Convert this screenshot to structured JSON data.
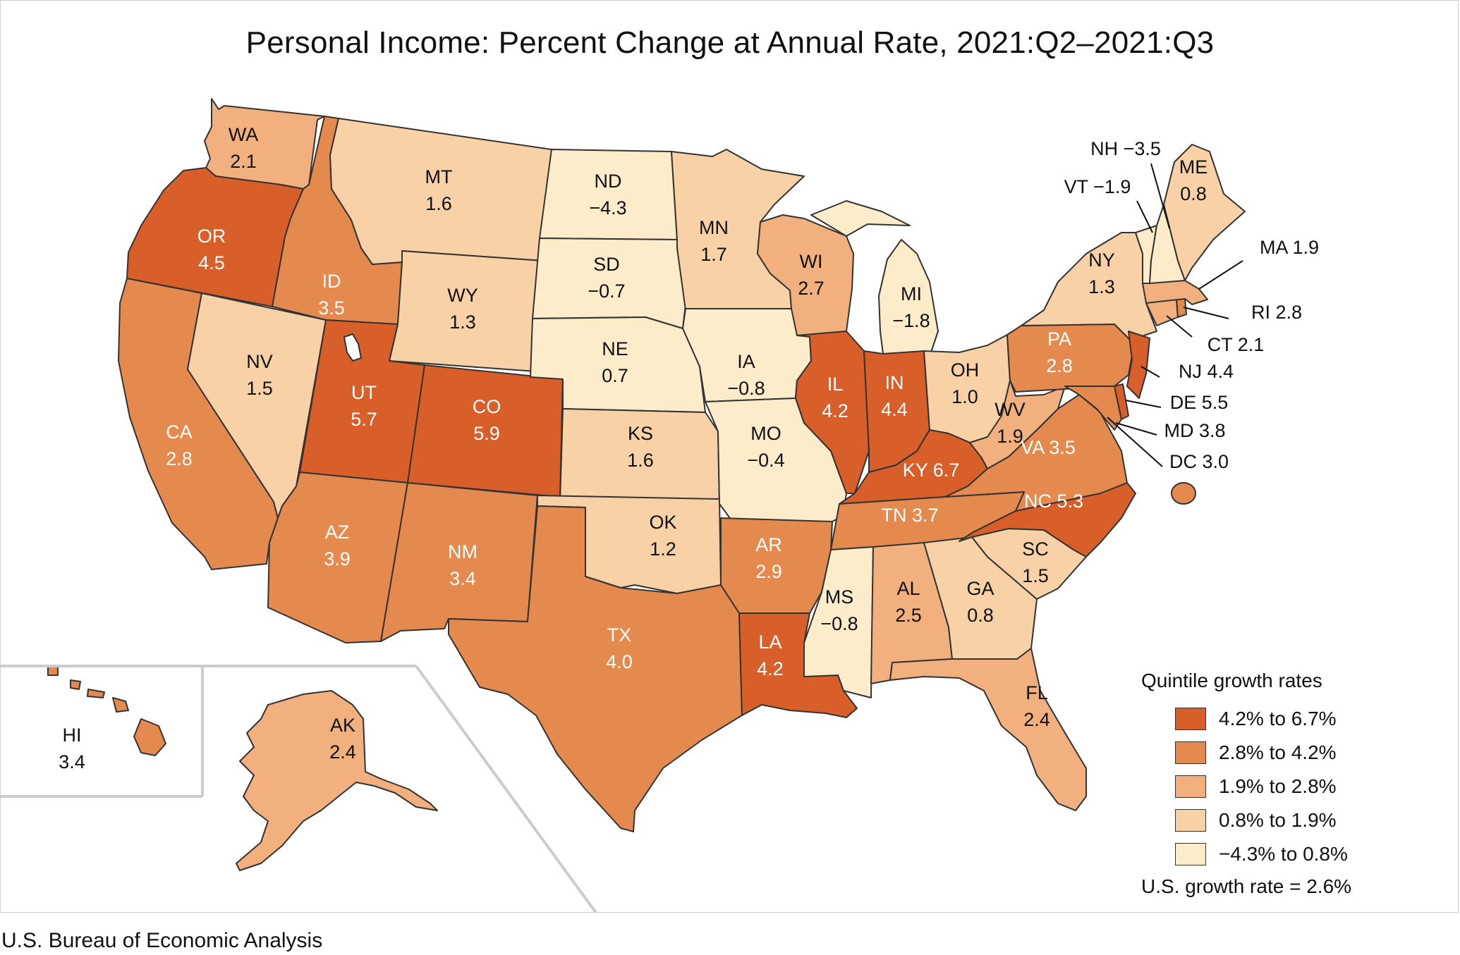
{
  "title": "Personal Income: Percent Change at Annual Rate, 2021:Q2–2021:Q3",
  "source": "U.S. Bureau of Economic Analysis",
  "colors": {
    "q5": "#d95f2a",
    "q4": "#e58a4e",
    "q3": "#f2b07e",
    "q2": "#f8d1a6",
    "q1": "#fdecc9",
    "border": "#333333"
  },
  "legend": {
    "title": "Quintile growth rates",
    "items": [
      {
        "label": "4.2% to 6.7%",
        "color": "#d95f2a"
      },
      {
        "label": "2.8% to 4.2%",
        "color": "#e58a4e"
      },
      {
        "label": "1.9% to 2.8%",
        "color": "#f2b07e"
      },
      {
        "label": "0.8% to 1.9%",
        "color": "#f8d1a6"
      },
      {
        "label": "−4.3% to 0.8%",
        "color": "#fdecc9"
      }
    ],
    "us_rate": "U.S. growth rate = 2.6%"
  },
  "states": {
    "WA": {
      "abbr": "WA",
      "value": "2.1"
    },
    "OR": {
      "abbr": "OR",
      "value": "4.5"
    },
    "CA": {
      "abbr": "CA",
      "value": "2.8"
    },
    "NV": {
      "abbr": "NV",
      "value": "1.5"
    },
    "ID": {
      "abbr": "ID",
      "value": "3.5"
    },
    "MT": {
      "abbr": "MT",
      "value": "1.6"
    },
    "WY": {
      "abbr": "WY",
      "value": "1.3"
    },
    "UT": {
      "abbr": "UT",
      "value": "5.7"
    },
    "CO": {
      "abbr": "CO",
      "value": "5.9"
    },
    "AZ": {
      "abbr": "AZ",
      "value": "3.9"
    },
    "NM": {
      "abbr": "NM",
      "value": "3.4"
    },
    "ND": {
      "abbr": "ND",
      "value": "−4.3"
    },
    "SD": {
      "abbr": "SD",
      "value": "−0.7"
    },
    "NE": {
      "abbr": "NE",
      "value": "0.7"
    },
    "KS": {
      "abbr": "KS",
      "value": "1.6"
    },
    "OK": {
      "abbr": "OK",
      "value": "1.2"
    },
    "TX": {
      "abbr": "TX",
      "value": "4.0"
    },
    "MN": {
      "abbr": "MN",
      "value": "1.7"
    },
    "IA": {
      "abbr": "IA",
      "value": "−0.8"
    },
    "MO": {
      "abbr": "MO",
      "value": "−0.4"
    },
    "AR": {
      "abbr": "AR",
      "value": "2.9"
    },
    "LA": {
      "abbr": "LA",
      "value": "4.2"
    },
    "WI": {
      "abbr": "WI",
      "value": "2.7"
    },
    "IL": {
      "abbr": "IL",
      "value": "4.2"
    },
    "MI": {
      "abbr": "MI",
      "value": "−1.8"
    },
    "IN": {
      "abbr": "IN",
      "value": "4.4"
    },
    "OH": {
      "abbr": "OH",
      "value": "1.0"
    },
    "KY": {
      "abbr": "KY",
      "value": "6.7"
    },
    "TN": {
      "abbr": "TN",
      "value": "3.7"
    },
    "MS": {
      "abbr": "MS",
      "value": "−0.8"
    },
    "AL": {
      "abbr": "AL",
      "value": "2.5"
    },
    "GA": {
      "abbr": "GA",
      "value": "0.8"
    },
    "FL": {
      "abbr": "FL",
      "value": "2.4"
    },
    "SC": {
      "abbr": "SC",
      "value": "1.5"
    },
    "NC": {
      "abbr": "NC",
      "value": "5.3"
    },
    "VA": {
      "abbr": "VA",
      "value": "3.5"
    },
    "WV": {
      "abbr": "WV",
      "value": "1.9"
    },
    "PA": {
      "abbr": "PA",
      "value": "2.8"
    },
    "NY": {
      "abbr": "NY",
      "value": "1.3"
    },
    "ME": {
      "abbr": "ME",
      "value": "0.8"
    },
    "VT": {
      "abbr": "VT",
      "value": "−1.9"
    },
    "NH": {
      "abbr": "NH",
      "value": "−3.5"
    },
    "MA": {
      "abbr": "MA",
      "value": "1.9"
    },
    "RI": {
      "abbr": "RI",
      "value": "2.8"
    },
    "CT": {
      "abbr": "CT",
      "value": "2.1"
    },
    "NJ": {
      "abbr": "NJ",
      "value": "4.4"
    },
    "DE": {
      "abbr": "DE",
      "value": "5.5"
    },
    "MD": {
      "abbr": "MD",
      "value": "3.8"
    },
    "DC": {
      "abbr": "DC",
      "value": "3.0"
    },
    "HI": {
      "abbr": "HI",
      "value": "3.4"
    },
    "AK": {
      "abbr": "AK",
      "value": "2.4"
    }
  }
}
